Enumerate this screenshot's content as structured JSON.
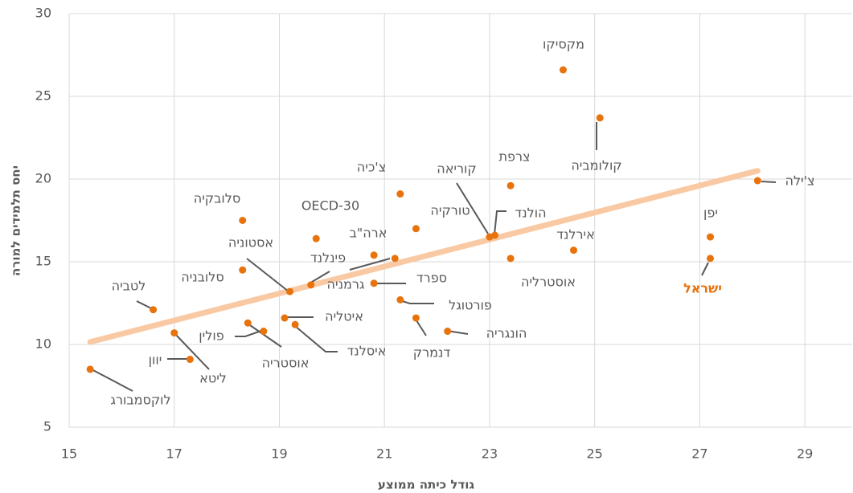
{
  "chart_data": {
    "type": "scatter",
    "x_label": "גודל כיתה ממוצע",
    "y_label": "יחס תלמידים למורה",
    "labels": [
      "לוקסמבורג",
      "לטביה",
      "ליטא",
      "יוון",
      "סלובקיה",
      "סלובניה",
      "פולין",
      "אוסטריה",
      "אסטוניה",
      "איטליה",
      "איסלנד",
      "OECD-30",
      "פינלנד",
      "ארה\"ב",
      "גרמניה",
      "צ'כיה",
      "ספרד",
      "פורטוגל",
      "דנמרק",
      "הונגריה",
      "טורקיה",
      "קוריאה",
      "הולנד",
      "צרפת",
      "אוסטרליה",
      "אירלנד",
      "מקסיקו",
      "קולומביה",
      "יפן",
      "ישראל",
      "צ'ילה"
    ],
    "x": [
      15.4,
      16.6,
      17.0,
      17.3,
      18.3,
      18.3,
      18.7,
      18.4,
      19.2,
      19.1,
      19.3,
      19.7,
      19.6,
      20.8,
      21.2,
      21.3,
      20.8,
      21.3,
      21.6,
      22.2,
      21.6,
      23.0,
      23.1,
      23.4,
      23.4,
      24.6,
      24.4,
      25.1,
      27.2,
      27.2,
      28.1
    ],
    "y": [
      8.5,
      12.1,
      10.7,
      9.1,
      17.5,
      14.5,
      10.8,
      11.3,
      13.2,
      11.6,
      11.2,
      16.4,
      13.6,
      15.4,
      15.2,
      19.1,
      13.7,
      12.7,
      11.6,
      10.8,
      17.0,
      16.5,
      16.6,
      19.6,
      15.2,
      15.7,
      26.6,
      23.7,
      16.5,
      15.2,
      19.9
    ],
    "color": "#e8720c",
    "label_color": "#595959",
    "highlight": 29,
    "highlight_color": "#e8720c",
    "trendline": {
      "x": [
        15.4,
        28.1
      ],
      "y": [
        10.15,
        20.5
      ],
      "color": "#f9c9a3"
    },
    "xlim": [
      15,
      29.9
    ],
    "ylim": [
      5,
      30
    ],
    "xticks": [
      15,
      17,
      19,
      21,
      23,
      25,
      27,
      29
    ],
    "yticks": [
      5,
      10,
      15,
      20,
      25,
      30
    ],
    "grid": true
  }
}
